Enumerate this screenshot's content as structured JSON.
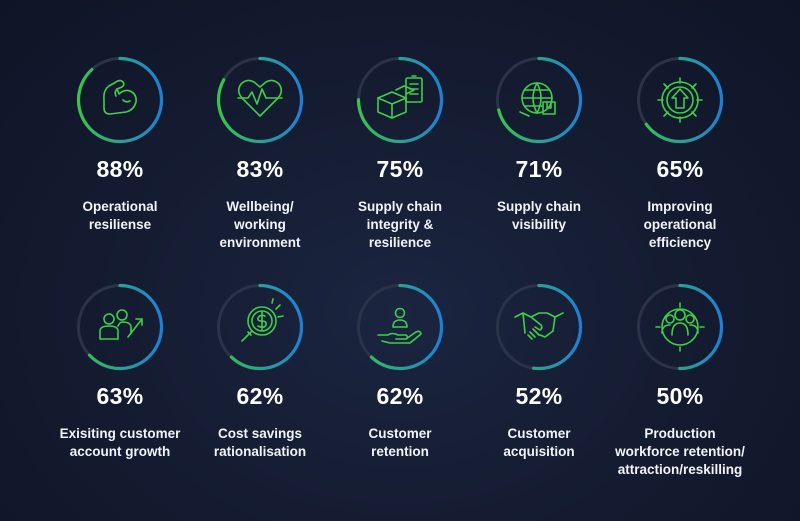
{
  "colors": {
    "ring_track": "#2a3348",
    "ring_start": "#39c44a",
    "ring_end": "#1f7fd6",
    "icon": "#3ecf4a"
  },
  "chart_data": {
    "type": "radial-progress",
    "unit": "%",
    "items": [
      {
        "value": 88,
        "display": "88%",
        "label": "Operational resiliense",
        "label_lines": [
          "Operational",
          "resiliense"
        ],
        "icon": "flexed-arm-icon"
      },
      {
        "value": 83,
        "display": "83%",
        "label": "Wellbeing/ working environment",
        "label_lines": [
          "Wellbeing/",
          "working",
          "environment"
        ],
        "icon": "heart-pulse-icon"
      },
      {
        "value": 75,
        "display": "75%",
        "label": "Supply chain integrity & resilience",
        "label_lines": [
          "Supply chain",
          "integrity &",
          "resilience"
        ],
        "icon": "boxes-checklist-icon"
      },
      {
        "value": 71,
        "display": "71%",
        "label": "Supply chain visibility",
        "label_lines": [
          "Supply chain",
          "visibility"
        ],
        "icon": "globe-box-icon"
      },
      {
        "value": 65,
        "display": "65%",
        "label": "Improving operational efficiency",
        "label_lines": [
          "Improving",
          "operational",
          "efficiency"
        ],
        "icon": "gear-arrow-icon"
      },
      {
        "value": 63,
        "display": "63%",
        "label": "Exisiting customer account growth",
        "label_lines": [
          "Exisiting customer",
          "account growth"
        ],
        "icon": "people-growth-icon"
      },
      {
        "value": 62,
        "display": "62%",
        "label": "Cost savings rationalisation",
        "label_lines": [
          "Cost savings",
          "rationalisation"
        ],
        "icon": "dollar-magnifier-icon"
      },
      {
        "value": 62,
        "display": "62%",
        "label": "Customer retention",
        "label_lines": [
          "Customer",
          "retention"
        ],
        "icon": "hand-person-icon"
      },
      {
        "value": 52,
        "display": "52%",
        "label": "Customer acquisition",
        "label_lines": [
          "Customer",
          "acquisition"
        ],
        "icon": "handshake-icon"
      },
      {
        "value": 50,
        "display": "50%",
        "label": "Production workforce retention/ attraction/reskilling",
        "label_lines": [
          "Production",
          "workforce retention/",
          "attraction/reskilling"
        ],
        "icon": "team-gear-icon"
      }
    ]
  }
}
